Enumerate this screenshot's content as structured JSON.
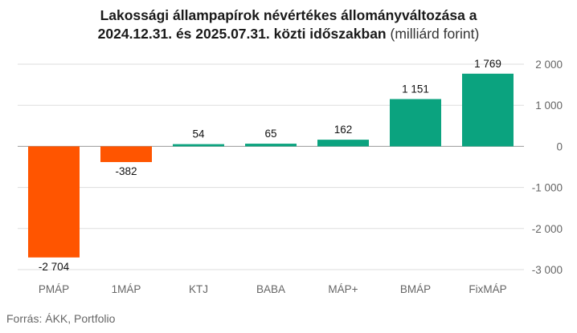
{
  "title": {
    "line1_bold": "Lakossági állampapírok névértékes állományváltozása a",
    "line2_bold": "2024.12.31. és 2025.07.31. közti időszakban",
    "line2_unit": "(milliárd forint)"
  },
  "source": "Forrás: ÁKK, Portfolio",
  "chart_data": {
    "type": "bar",
    "categories": [
      "PMÁP",
      "1MÁP",
      "KTJ",
      "BABA",
      "MÁP+",
      "BMÁP",
      "FixMÁP"
    ],
    "values": [
      -2704,
      -382,
      54,
      65,
      162,
      1151,
      1769
    ],
    "value_labels": [
      "-2 704",
      "-382",
      "54",
      "65",
      "162",
      "1 151",
      "1 769"
    ],
    "ylim": [
      -3000,
      2000
    ],
    "yticks": [
      2000,
      1000,
      0,
      -1000,
      -2000,
      -3000
    ],
    "ytick_labels": [
      "2 000",
      "1 000",
      "0",
      "-1 000",
      "-2 000",
      "-3 000"
    ],
    "y_axis_position": "right",
    "grid": true,
    "colors": {
      "negative": "#ff5500",
      "positive": "#0ba37f",
      "grid": "#dddddd",
      "zero_line": "#999999"
    }
  }
}
